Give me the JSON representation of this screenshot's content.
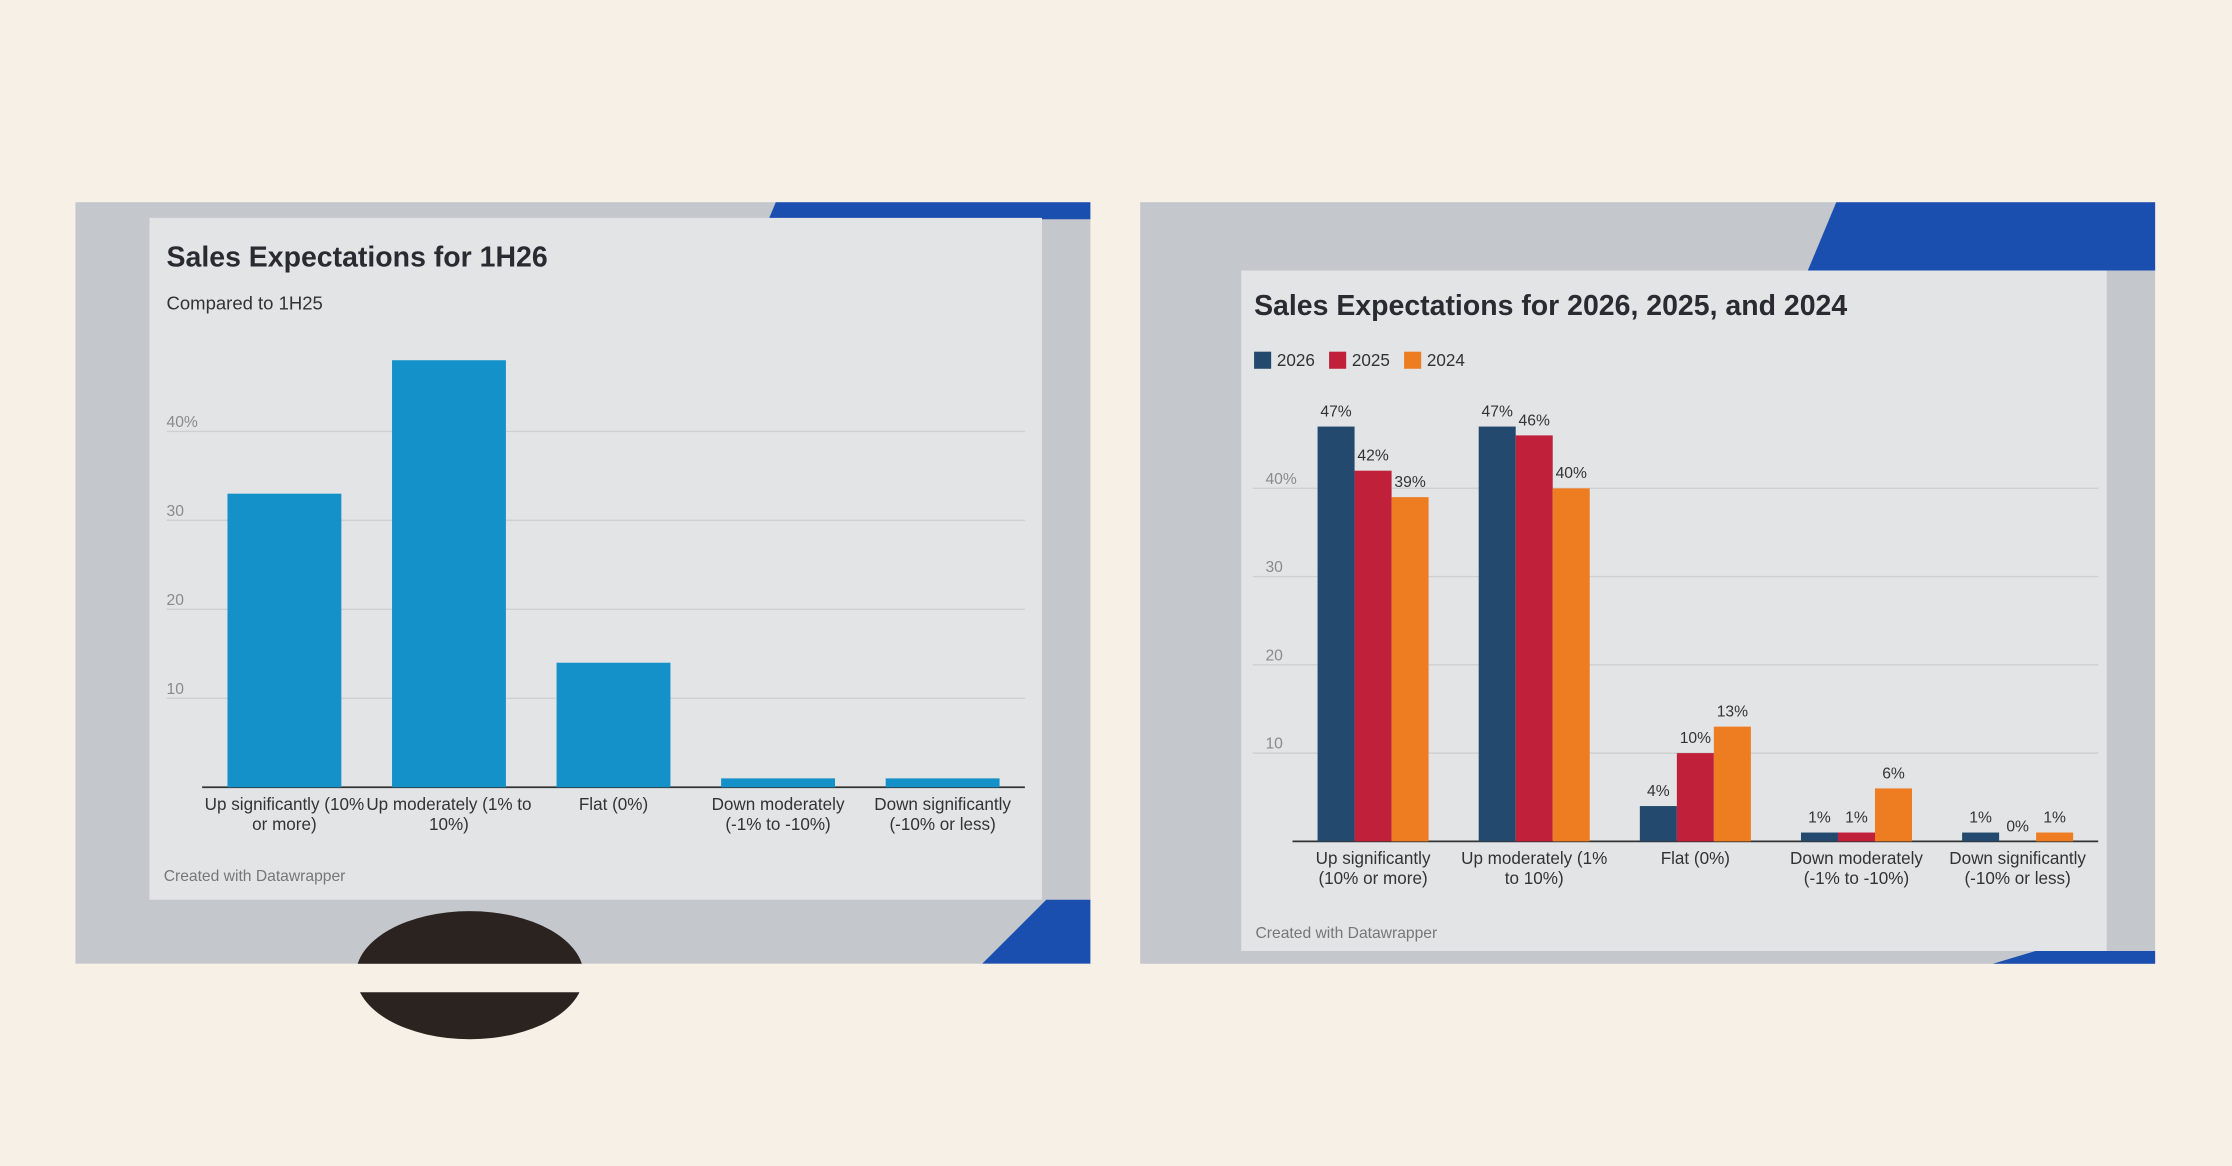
{
  "chart_data": [
    {
      "type": "bar",
      "title": "Sales Expectations for 1H26",
      "subtitle": "Compared to 1H25",
      "categories": [
        "Up significantly (10% or more)",
        "Up moderately (1% to 10%)",
        "Flat (0%)",
        "Down moderately (-1% to -10%)",
        "Down significantly (-10% or less)"
      ],
      "values": [
        33,
        48,
        14,
        1,
        1
      ],
      "color": "#1591c9",
      "ylim": [
        0,
        50
      ],
      "yticks": [
        10,
        20,
        30,
        {
          "value": 40,
          "label": "40%"
        }
      ],
      "grid": true,
      "credit": "Created with Datawrapper"
    },
    {
      "type": "bar",
      "title": "Sales Expectations for 2026, 2025, and 2024",
      "categories": [
        "Up significantly (10% or more)",
        "Up moderately (1% to 10%)",
        "Flat (0%)",
        "Down moderately (-1% to -10%)",
        "Down significantly (-10% or less)"
      ],
      "series": [
        {
          "name": "2026",
          "color": "#234a6e",
          "values": [
            47,
            47,
            4,
            1,
            1
          ],
          "value_labels": [
            "47%",
            "47%",
            "4%",
            "1%",
            "1%"
          ]
        },
        {
          "name": "2025",
          "color": "#c0203a",
          "values": [
            42,
            46,
            10,
            1,
            0
          ],
          "value_labels": [
            "42%",
            "46%",
            "10%",
            "1%",
            "0%"
          ]
        },
        {
          "name": "2024",
          "color": "#ee7d22",
          "values": [
            39,
            40,
            13,
            6,
            1
          ],
          "value_labels": [
            "39%",
            "40%",
            "13%",
            "6%",
            "1%"
          ]
        }
      ],
      "ylim": [
        0,
        50
      ],
      "yticks": [
        10,
        20,
        30,
        {
          "value": 40,
          "label": "40%"
        }
      ],
      "grid": true,
      "legend": "top-left",
      "credit": "Created with Datawrapper"
    }
  ]
}
